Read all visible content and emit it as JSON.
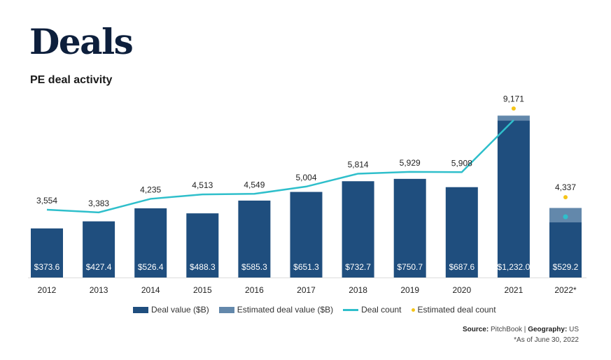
{
  "title": "Deals",
  "subtitle": "PE deal activity",
  "colors": {
    "deal_value": "#1f4e7e",
    "estimated_value": "#6388ab",
    "deal_count": "#2fbfcb",
    "estimated_count": "#f5c518"
  },
  "chart_data": {
    "type": "bar",
    "categories": [
      "2012",
      "2013",
      "2014",
      "2015",
      "2016",
      "2017",
      "2018",
      "2019",
      "2020",
      "2021",
      "2022*"
    ],
    "series": [
      {
        "name": "Deal value ($B)",
        "type": "bar",
        "values": [
          373.6,
          427.4,
          526.4,
          488.3,
          585.3,
          651.3,
          732.7,
          750.7,
          687.6,
          1195,
          420
        ]
      },
      {
        "name": "Estimated deal value ($B)",
        "type": "bar-stacked",
        "values": [
          0,
          0,
          0,
          0,
          0,
          0,
          0,
          0,
          0,
          37,
          109.2
        ]
      },
      {
        "name": "Deal count",
        "type": "line",
        "values": [
          3554,
          3383,
          4235,
          4513,
          4549,
          5004,
          5814,
          5929,
          5908,
          9171,
          null
        ]
      },
      {
        "name": "Estimated deal count",
        "type": "scatter",
        "values": [
          null,
          null,
          null,
          null,
          null,
          null,
          null,
          null,
          null,
          9900,
          4337
        ]
      }
    ],
    "deal_count_2022_partial": 3110,
    "bar_labels": [
      "$373.6",
      "$427.4",
      "$526.4",
      "$488.3",
      "$585.3",
      "$651.3",
      "$732.7",
      "$750.7",
      "$687.6",
      "$1,232.0",
      "$529.2"
    ],
    "count_labels": [
      "3,554",
      "3,383",
      "4,235",
      "4,513",
      "4,549",
      "5,004",
      "5,814",
      "5,929",
      "5,908",
      "9,171",
      "4,337"
    ],
    "legend": [
      "Deal value ($B)",
      "Estimated deal value ($B)",
      "Deal count",
      "Estimated deal count"
    ],
    "legend_position": "bottom",
    "grid": false
  },
  "source": {
    "source_label": "Source:",
    "source_value": "PitchBook",
    "sep": "|",
    "geo_label": "Geography:",
    "geo_value": "US",
    "note": "*As of June 30, 2022"
  }
}
